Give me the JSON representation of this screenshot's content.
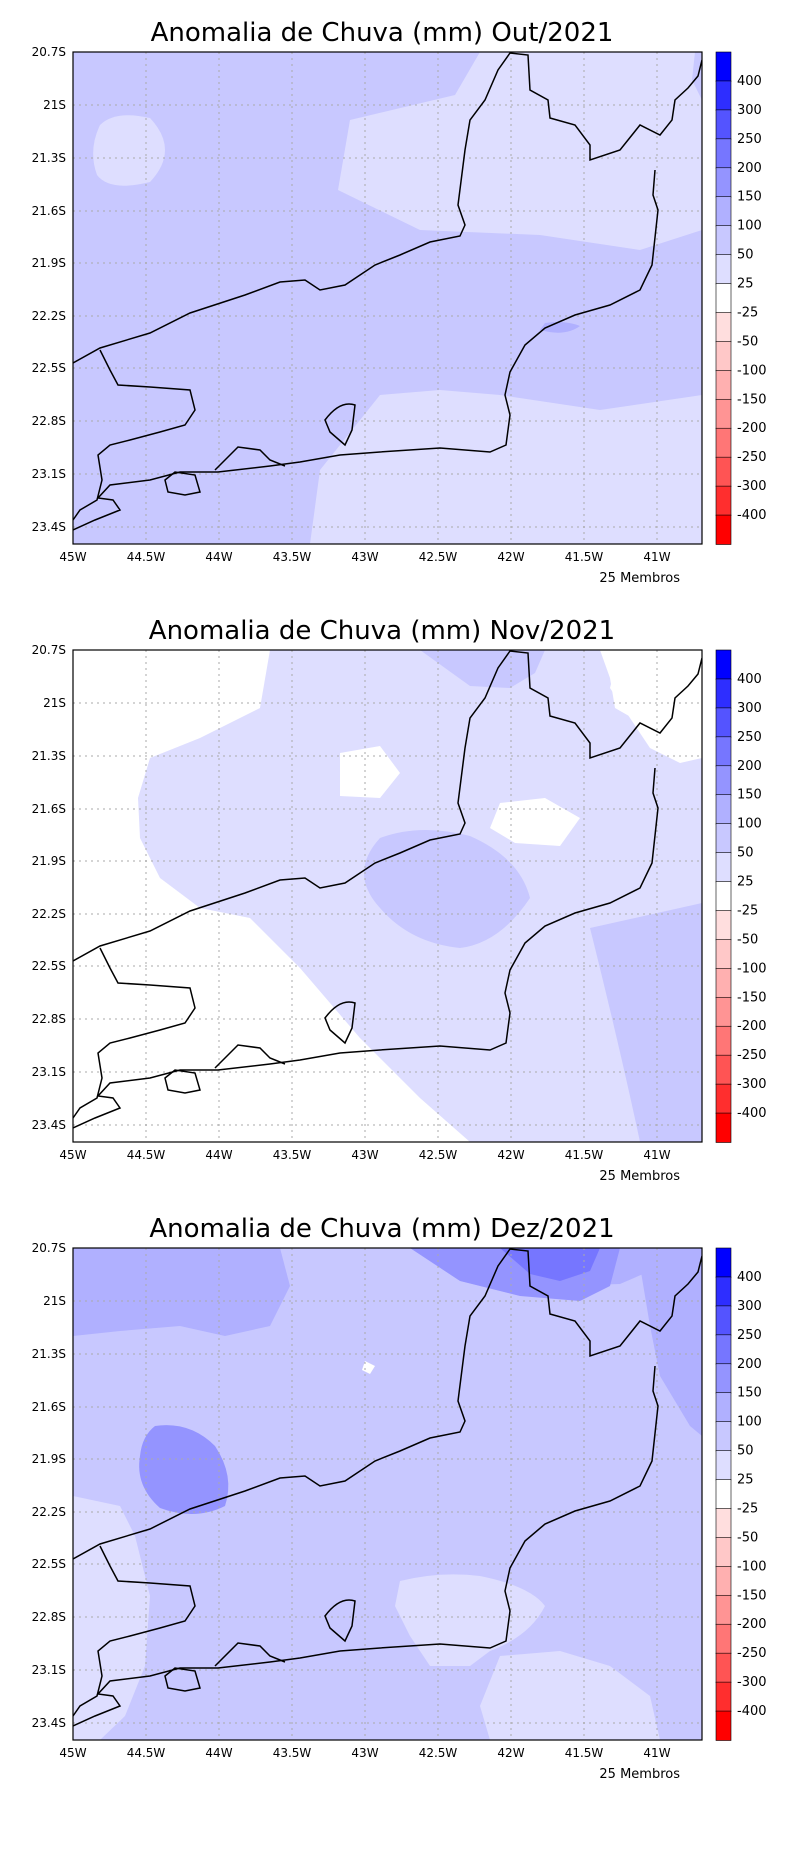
{
  "maps": [
    {
      "title": "Anomalia de Chuva (mm) Out/2021",
      "members": "25 Membros"
    },
    {
      "title": "Anomalia de Chuva (mm) Nov/2021",
      "members": "25 Membros"
    },
    {
      "title": "Anomalia de Chuva (mm) Dez/2021",
      "members": "25 Membros"
    }
  ],
  "axes": {
    "lat_labels": [
      "20.7S",
      "21S",
      "21.3S",
      "21.6S",
      "21.9S",
      "22.2S",
      "22.5S",
      "22.8S",
      "23.1S",
      "23.4S"
    ],
    "lon_labels": [
      "45W",
      "44.5W",
      "44W",
      "43.5W",
      "43W",
      "42.5W",
      "42W",
      "41.5W",
      "41W"
    ],
    "lat_range": [
      -23.5,
      -20.7
    ],
    "lon_range": [
      -45,
      -40.7
    ]
  },
  "colorbar": {
    "labels": [
      "400",
      "300",
      "250",
      "200",
      "150",
      "100",
      "50",
      "25",
      "-25",
      "-50",
      "-100",
      "-150",
      "-200",
      "-250",
      "-300",
      "-400"
    ],
    "colors": [
      "#0000ff",
      "#2e2eff",
      "#5454ff",
      "#7676ff",
      "#9494ff",
      "#b0b0ff",
      "#c8c8ff",
      "#dedeff",
      "#ffffff",
      "#ffdede",
      "#ffc8c8",
      "#ffb0b0",
      "#ff9494",
      "#ff7676",
      "#ff5454",
      "#ff2e2e",
      "#ff0000"
    ]
  }
}
